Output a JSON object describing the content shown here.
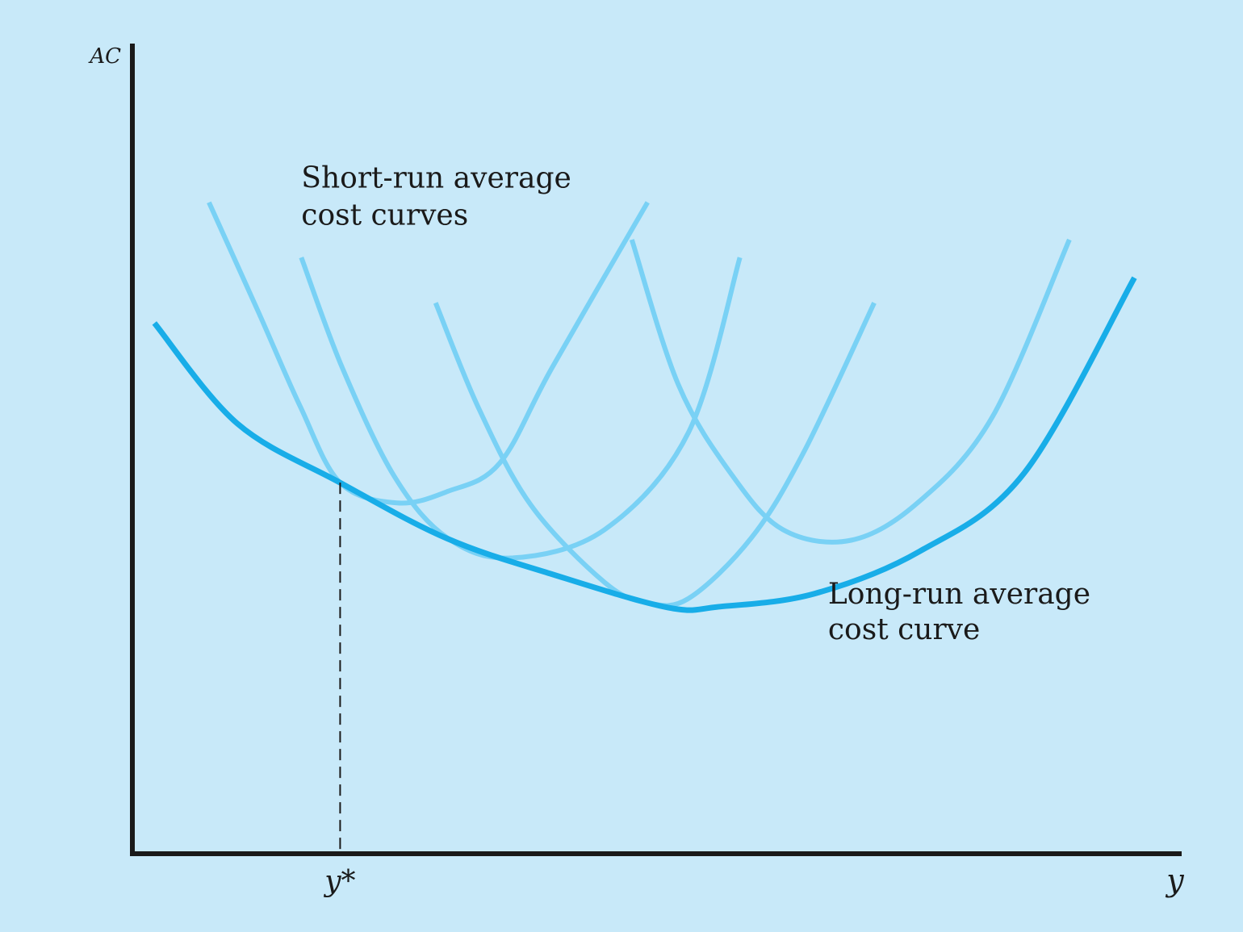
{
  "chart_data": {
    "type": "line",
    "title": "",
    "ylabel": "AC",
    "xlabel": "y",
    "xlim": [
      0,
      100
    ],
    "ylim": [
      0,
      100
    ],
    "grid": false,
    "legend": "none",
    "colors": {
      "background": "#c8e9f9",
      "long_run": "#18ade8",
      "short_run": "#79d1f5",
      "axis": "#1a1a1a"
    },
    "marker": {
      "label": "y*",
      "x": 19.8,
      "y": 45.8
    },
    "annotations": [
      {
        "lines": [
          "Short-run average",
          "cost curves"
        ],
        "x": 16.1,
        "y": 82.2
      },
      {
        "lines": [
          "Long-run average",
          "cost curve"
        ],
        "x": 66.3,
        "y": 30.9
      }
    ],
    "series": [
      {
        "role": "long-run",
        "points": [
          [
            2.1,
            65.5
          ],
          [
            10,
            53.1
          ],
          [
            19.8,
            45.8
          ],
          [
            30,
            38.9
          ],
          [
            40,
            34.5
          ],
          [
            51,
            30.4
          ],
          [
            56,
            30.5
          ],
          [
            65,
            32.1
          ],
          [
            75,
            37.3
          ],
          [
            85,
            47.0
          ],
          [
            95.5,
            71.1
          ]
        ]
      },
      {
        "role": "short-run",
        "points": [
          [
            7.3,
            80.4
          ],
          [
            12,
            66.9
          ],
          [
            16,
            55.2
          ],
          [
            19.8,
            45.8
          ],
          [
            25.2,
            43.3
          ],
          [
            30,
            44.7
          ],
          [
            35,
            48.2
          ],
          [
            40,
            60.0
          ],
          [
            49.1,
            80.4
          ]
        ]
      },
      {
        "role": "short-run",
        "points": [
          [
            16.1,
            73.6
          ],
          [
            20,
            60.0
          ],
          [
            25,
            46.5
          ],
          [
            30,
            39.0
          ],
          [
            36.1,
            36.5
          ],
          [
            45,
            40.0
          ],
          [
            53,
            52.0
          ],
          [
            57.9,
            73.6
          ]
        ]
      },
      {
        "role": "short-run",
        "points": [
          [
            28.9,
            68.0
          ],
          [
            33,
            55.0
          ],
          [
            38,
            43.0
          ],
          [
            45,
            33.5
          ],
          [
            49.0,
            31.0
          ],
          [
            53,
            31.5
          ],
          [
            59,
            39.0
          ],
          [
            64,
            49.6
          ],
          [
            70.7,
            68.0
          ]
        ]
      },
      {
        "role": "short-run",
        "points": [
          [
            47.6,
            75.8
          ],
          [
            52,
            58.0
          ],
          [
            57,
            47.0
          ],
          [
            62,
            40.0
          ],
          [
            68.5,
            38.7
          ],
          [
            75,
            43.5
          ],
          [
            82,
            54.0
          ],
          [
            89.3,
            75.8
          ]
        ]
      }
    ]
  }
}
